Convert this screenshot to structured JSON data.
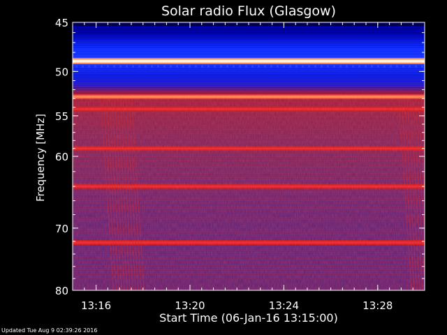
{
  "chart_data": {
    "type": "heatmap",
    "title": "Solar radio Flux (Glasgow)",
    "xlabel": "Start Time (06-Jan-16 13:15:00)",
    "ylabel": "Frequency [MHz]",
    "x_tick_labels": [
      "13:16",
      "13:20",
      "13:24",
      "13:28"
    ],
    "x_ticks_minutes_after_13_00": [
      16,
      20,
      24,
      28
    ],
    "xlim_minutes_after_13_00": [
      15.0,
      30.0
    ],
    "y_tick_labels": [
      "45",
      "50",
      "55",
      "60",
      "70",
      "80"
    ],
    "y_ticks_mhz": [
      45,
      50,
      55,
      60,
      70,
      80
    ],
    "ylim_mhz": [
      45,
      80
    ],
    "y_scale": "log",
    "colormap": [
      "#000040",
      "#0000c0",
      "#2040ff",
      "#6020a0",
      "#a01010",
      "#e02020",
      "#ff6030",
      "#ffd090",
      "#ffffff"
    ],
    "bright_bands_mhz": [
      {
        "freq": 48.9,
        "level": "saturated"
      },
      {
        "freq": 52.8,
        "level": "very high"
      },
      {
        "freq": 54.2,
        "level": "high"
      },
      {
        "freq": 59.0,
        "level": "high"
      },
      {
        "freq": 64.0,
        "level": "high"
      },
      {
        "freq": 72.2,
        "level": "high"
      }
    ]
  },
  "footer": "Updated Tue Aug  9 02:39:26 2016"
}
